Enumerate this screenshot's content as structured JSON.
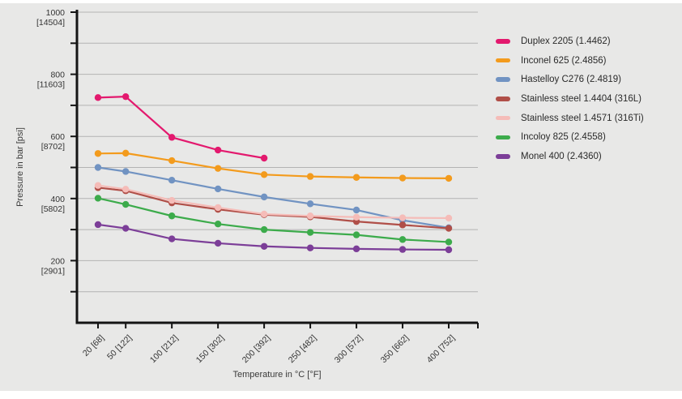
{
  "panel": {
    "background": "#e8e8e7"
  },
  "chart_data": {
    "type": "line",
    "title": "",
    "xlabel": "Temperature in °C [°F]",
    "ylabel": "Pressure in bar [psi]",
    "x": [
      20,
      50,
      100,
      150,
      200,
      250,
      300,
      350,
      400
    ],
    "x_tick_labels": [
      "20 [68]",
      "50 [122]",
      "100 [212]",
      "150 [302]",
      "200 [392]",
      "250 [482]",
      "300 [572]",
      "350 [662]",
      "400 [752]"
    ],
    "y_tick_labels": [
      {
        "value": 1000,
        "bar": "1000",
        "psi": "[14504]"
      },
      {
        "value": 800,
        "bar": "800",
        "psi": "[11603]"
      },
      {
        "value": 600,
        "bar": "600",
        "psi": "[8702]"
      },
      {
        "value": 400,
        "bar": "400",
        "psi": "[5802]"
      },
      {
        "value": 200,
        "bar": "200",
        "psi": "[2901]"
      }
    ],
    "ylim": [
      0,
      1000
    ],
    "y_grid_interval": 100,
    "grid": "horizontal gridlines every 100 bar, no vertical gridlines",
    "legend_position": "right",
    "colors": {
      "grid": "#b3b3b3",
      "axis": "#141414",
      "text": "#333333",
      "background": "#e8e8e7"
    },
    "series": [
      {
        "name": "Duplex 2205 (1.4462)",
        "color": "#e3196e",
        "values": [
          725,
          728,
          597,
          556,
          530,
          null,
          null,
          null,
          null
        ]
      },
      {
        "name": "Inconel 625 (2.4856)",
        "color": "#f39b1d",
        "values": [
          545,
          546,
          522,
          497,
          477,
          471,
          468,
          466,
          465
        ]
      },
      {
        "name": "Hastelloy C276 (2.4819)",
        "color": "#7193c2",
        "values": [
          500,
          487,
          459,
          431,
          405,
          383,
          363,
          330,
          306
        ]
      },
      {
        "name": "Stainless steel 1.4404 (316L)",
        "color": "#b04f48",
        "values": [
          435,
          425,
          386,
          365,
          348,
          341,
          326,
          315,
          304
        ]
      },
      {
        "name": "Stainless steel 1.4571 (316Ti)",
        "color": "#f5bcb8",
        "values": [
          442,
          430,
          394,
          371,
          350,
          344,
          340,
          338,
          337
        ]
      },
      {
        "name": "Incoloy 825 (2.4558)",
        "color": "#3cab4b",
        "values": [
          401,
          381,
          344,
          318,
          300,
          291,
          283,
          268,
          260
        ]
      },
      {
        "name": "Monel 400 (2.4360)",
        "color": "#7c3e98",
        "values": [
          316,
          304,
          270,
          256,
          246,
          241,
          238,
          236,
          235
        ]
      }
    ]
  }
}
